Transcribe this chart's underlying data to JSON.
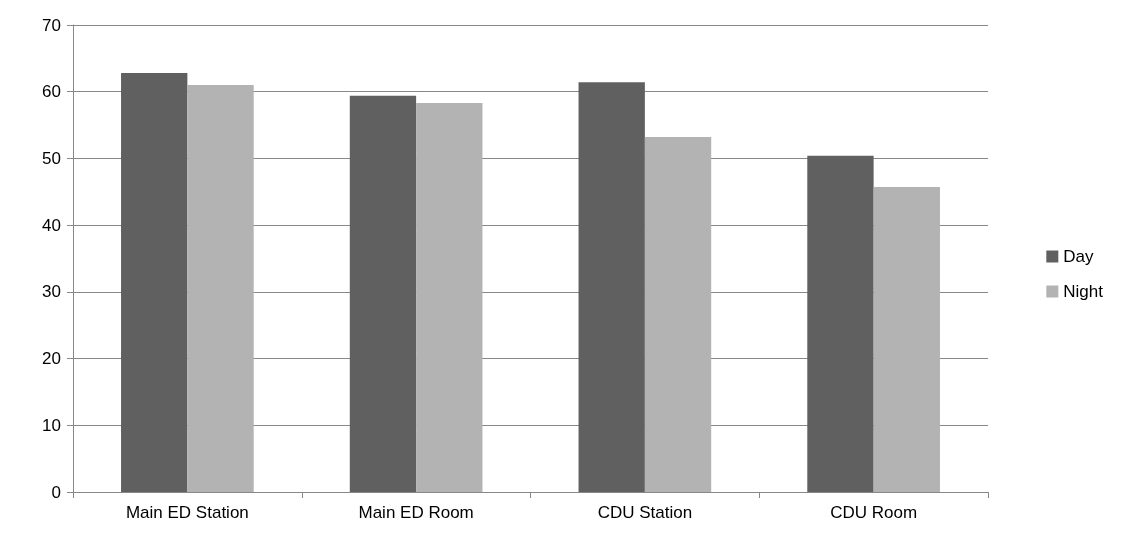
{
  "chart_data": {
    "type": "bar",
    "categories": [
      "Main ED Station",
      "Main ED Room",
      "CDU Station",
      "CDU Room"
    ],
    "series": [
      {
        "name": "Day",
        "color": "#606060",
        "values": [
          62.8,
          59.4,
          61.4,
          50.4
        ]
      },
      {
        "name": "Night",
        "color": "#b3b3b3",
        "values": [
          61.0,
          58.3,
          53.2,
          45.7
        ]
      }
    ],
    "ylim": [
      0,
      70
    ],
    "yticks": [
      0,
      10,
      20,
      30,
      40,
      50,
      60,
      70
    ],
    "grid": "y",
    "legend": "right"
  }
}
